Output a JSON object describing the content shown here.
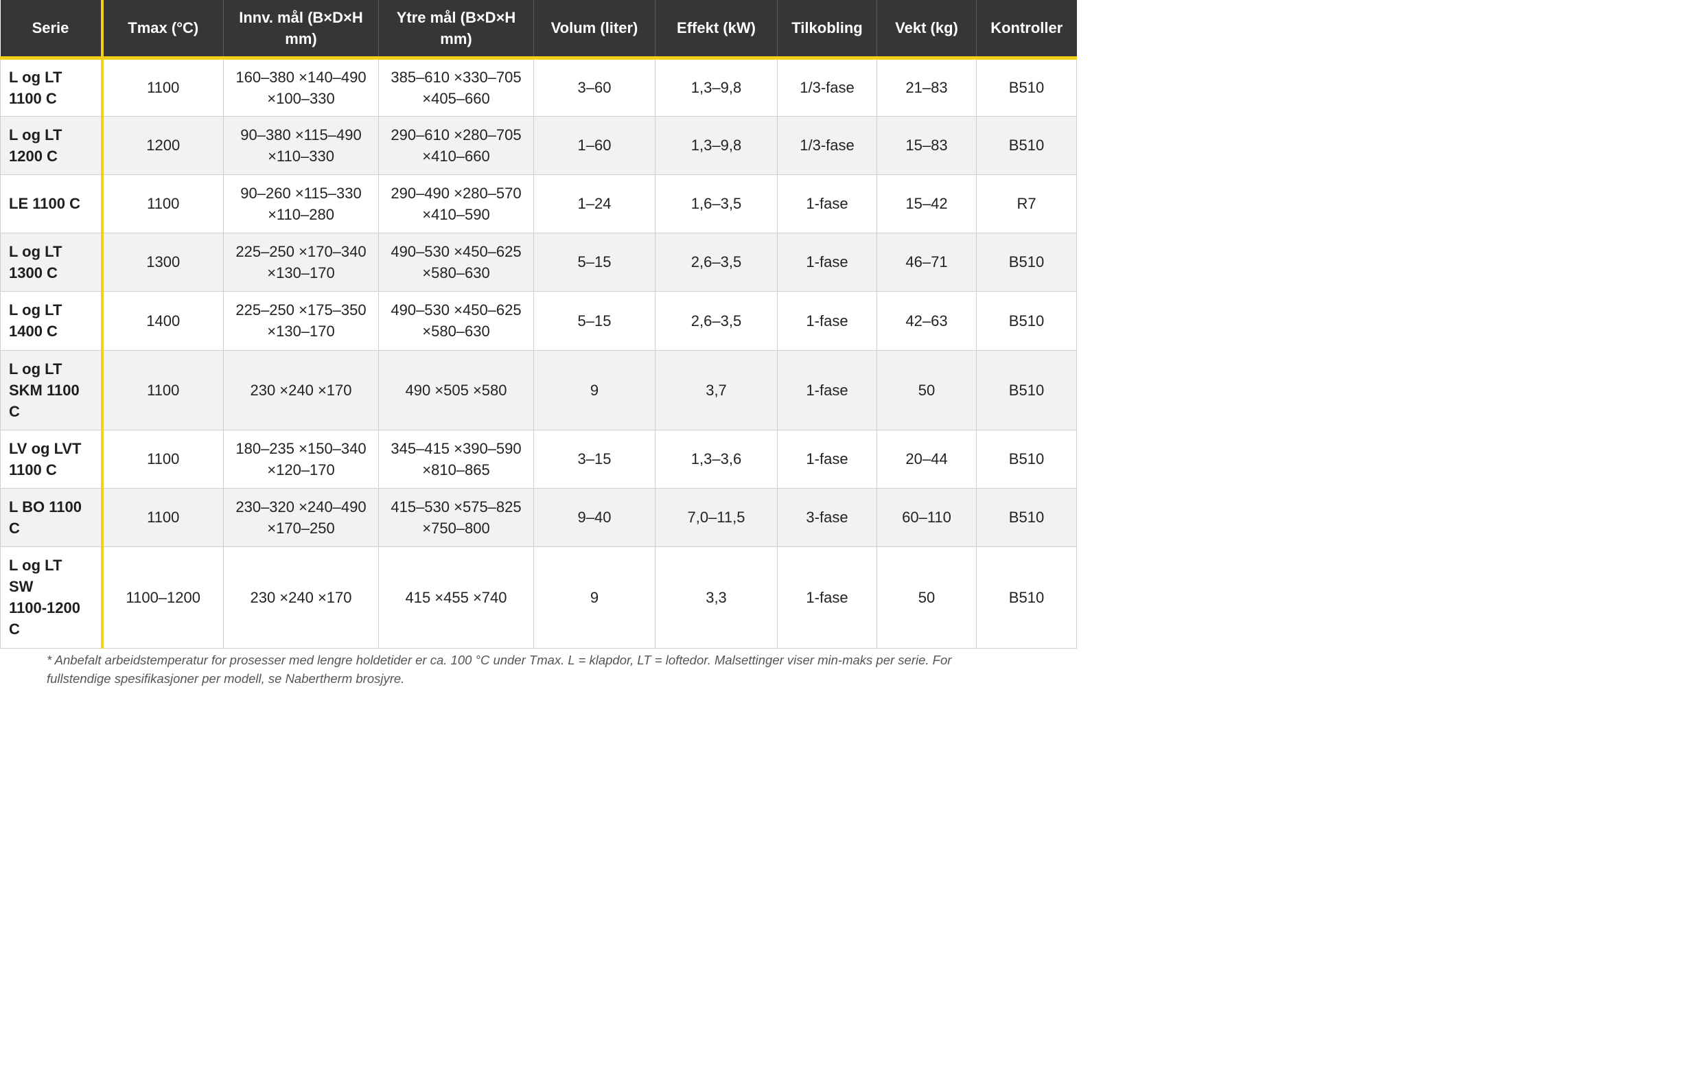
{
  "headers": {
    "serie": "Serie",
    "tmax": "Tmax (°C)",
    "innv_1": "Innv. mål (B×D×H",
    "innv_2": "mm)",
    "ytre_1": "Ytre mål (B×D×H",
    "ytre_2": "mm)",
    "volum": "Volum (liter)",
    "effekt": "Effekt (kW)",
    "tilkobling": "Tilkobling",
    "vekt": "Vekt (kg)",
    "kontroller": "Kontroller"
  },
  "rows": [
    {
      "serie": [
        "L og LT",
        "1100 C"
      ],
      "tmax": "1100",
      "innv": [
        "160–380 ×140–490",
        "×100–330"
      ],
      "ytre": [
        "385–610 ×330–705",
        "×405–660"
      ],
      "volum": "3–60",
      "effekt": "1,3–9,8",
      "tilkobling": "1/3-fase",
      "vekt": "21–83",
      "kontroller": "B510"
    },
    {
      "serie": [
        "L og LT",
        "1200 C"
      ],
      "tmax": "1200",
      "innv": [
        "90–380 ×115–490",
        "×110–330"
      ],
      "ytre": [
        "290–610 ×280–705",
        "×410–660"
      ],
      "volum": "1–60",
      "effekt": "1,3–9,8",
      "tilkobling": "1/3-fase",
      "vekt": "15–83",
      "kontroller": "B510"
    },
    {
      "serie": [
        "LE 1100 C"
      ],
      "tmax": "1100",
      "innv": [
        "90–260 ×115–330",
        "×110–280"
      ],
      "ytre": [
        "290–490 ×280–570",
        "×410–590"
      ],
      "volum": "1–24",
      "effekt": "1,6–3,5",
      "tilkobling": "1-fase",
      "vekt": "15–42",
      "kontroller": "R7"
    },
    {
      "serie": [
        "L og LT",
        "1300 C"
      ],
      "tmax": "1300",
      "innv": [
        "225–250 ×170–340",
        "×130–170"
      ],
      "ytre": [
        "490–530 ×450–625",
        "×580–630"
      ],
      "volum": "5–15",
      "effekt": "2,6–3,5",
      "tilkobling": "1-fase",
      "vekt": "46–71",
      "kontroller": "B510"
    },
    {
      "serie": [
        "L og LT",
        "1400 C"
      ],
      "tmax": "1400",
      "innv": [
        "225–250 ×175–350",
        "×130–170"
      ],
      "ytre": [
        "490–530 ×450–625",
        "×580–630"
      ],
      "volum": "5–15",
      "effekt": "2,6–3,5",
      "tilkobling": "1-fase",
      "vekt": "42–63",
      "kontroller": "B510"
    },
    {
      "serie": [
        "L og LT",
        "SKM 1100",
        "C"
      ],
      "tmax": "1100",
      "innv": [
        "230 ×240 ×170"
      ],
      "ytre": [
        "490 ×505 ×580"
      ],
      "volum": "9",
      "effekt": "3,7",
      "tilkobling": "1-fase",
      "vekt": "50",
      "kontroller": "B510"
    },
    {
      "serie": [
        "LV og LVT",
        "1100 C"
      ],
      "tmax": "1100",
      "innv": [
        "180–235 ×150–340",
        "×120–170"
      ],
      "ytre": [
        "345–415 ×390–590",
        "×810–865"
      ],
      "volum": "3–15",
      "effekt": "1,3–3,6",
      "tilkobling": "1-fase",
      "vekt": "20–44",
      "kontroller": "B510"
    },
    {
      "serie": [
        "L BO 1100",
        "C"
      ],
      "tmax": "1100",
      "innv": [
        "230–320 ×240–490",
        "×170–250"
      ],
      "ytre": [
        "415–530 ×575–825",
        "×750–800"
      ],
      "volum": "9–40",
      "effekt": "7,0–11,5",
      "tilkobling": "3-fase",
      "vekt": "60–110",
      "kontroller": "B510"
    },
    {
      "serie": [
        "L og LT",
        "SW",
        "1100-1200",
        "C"
      ],
      "tmax": "1100–1200",
      "innv": [
        "230 ×240 ×170"
      ],
      "ytre": [
        "415 ×455 ×740"
      ],
      "volum": "9",
      "effekt": "3,3",
      "tilkobling": "1-fase",
      "vekt": "50",
      "kontroller": "B510"
    }
  ],
  "footnote": [
    "* Anbefalt arbeidstemperatur for prosesser med lengre holdetider er ca. 100 °C under Tmax. L = klapdor, LT = loftedor. Malsettinger viser min-maks per serie. For",
    "fullstendige spesifikasjoner per modell, se Nabertherm brosjyre."
  ]
}
